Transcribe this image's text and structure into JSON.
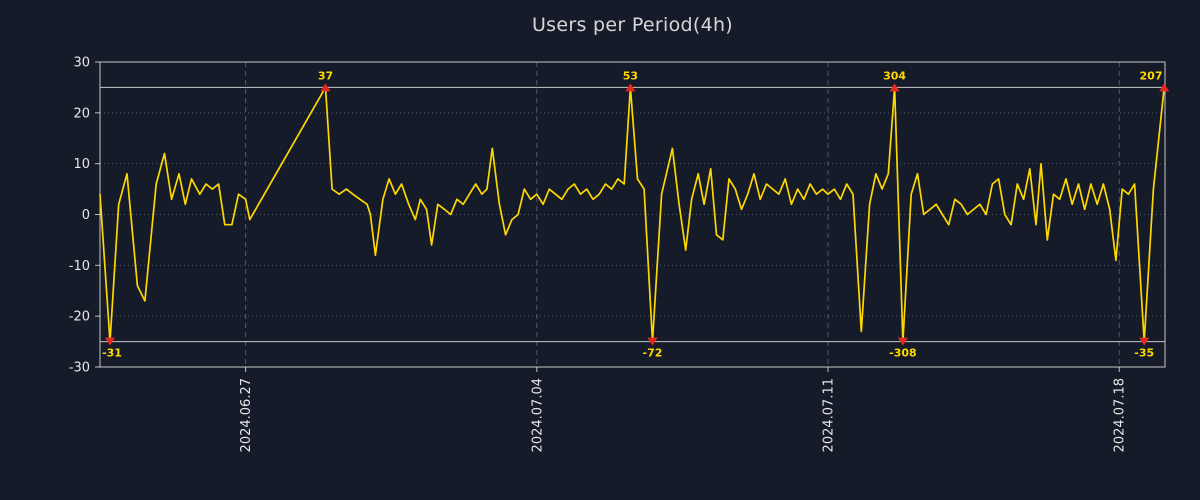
{
  "chart_data": {
    "type": "line",
    "title": "Users per Period(4h)",
    "xlabel": "",
    "ylabel": "",
    "ylim": [
      -30,
      30
    ],
    "yticks": [
      30,
      20,
      10,
      0,
      -10,
      -20,
      -30
    ],
    "clip_value": 25,
    "x_domain": [
      0,
      25.6
    ],
    "xticks": [
      {
        "t": 3.5,
        "label": "2024.06.27"
      },
      {
        "t": 10.5,
        "label": "2024.07.04"
      },
      {
        "t": 17.5,
        "label": "2024.07.11"
      },
      {
        "t": 24.5,
        "label": "2024.07.18"
      }
    ],
    "clipped_point_labels": [
      "-31",
      "37",
      "53",
      "-72",
      "304",
      "-308",
      "-35",
      "207"
    ],
    "colors": {
      "background": "#151b28",
      "line": "#ffd700",
      "clip_marker": "#e8281e",
      "clip_label": "#ffd700",
      "grid": "#9aa3b0",
      "border": "#c8c8c8",
      "clip_line": "#dcdcdc",
      "tick_text": "#e8e8e8",
      "title_text": "#d6d6d6"
    },
    "series": [
      {
        "name": "users",
        "color": "#ffd700",
        "points": [
          [
            0.0,
            4
          ],
          [
            0.24,
            -31
          ],
          [
            0.45,
            2
          ],
          [
            0.65,
            8
          ],
          [
            0.9,
            -14
          ],
          [
            1.08,
            -17
          ],
          [
            1.35,
            6
          ],
          [
            1.55,
            12
          ],
          [
            1.72,
            3
          ],
          [
            1.9,
            8
          ],
          [
            2.05,
            2
          ],
          [
            2.2,
            7
          ],
          [
            2.4,
            4
          ],
          [
            2.55,
            6
          ],
          [
            2.7,
            5
          ],
          [
            2.85,
            6
          ],
          [
            3.0,
            -2
          ],
          [
            3.17,
            -2
          ],
          [
            3.33,
            4
          ],
          [
            3.5,
            3
          ],
          [
            3.6,
            -1
          ],
          [
            5.42,
            37
          ],
          [
            5.58,
            5
          ],
          [
            5.75,
            4
          ],
          [
            5.92,
            5
          ],
          [
            6.08,
            4
          ],
          [
            6.25,
            3
          ],
          [
            6.42,
            2
          ],
          [
            6.5,
            0
          ],
          [
            6.62,
            -8
          ],
          [
            6.8,
            3
          ],
          [
            6.95,
            7
          ],
          [
            7.1,
            4
          ],
          [
            7.25,
            6
          ],
          [
            7.42,
            2
          ],
          [
            7.58,
            -1
          ],
          [
            7.7,
            3
          ],
          [
            7.85,
            1
          ],
          [
            7.97,
            -6
          ],
          [
            8.12,
            2
          ],
          [
            8.28,
            1
          ],
          [
            8.43,
            0
          ],
          [
            8.58,
            3
          ],
          [
            8.73,
            2
          ],
          [
            8.88,
            4
          ],
          [
            9.03,
            6
          ],
          [
            9.18,
            4
          ],
          [
            9.3,
            5
          ],
          [
            9.43,
            13
          ],
          [
            9.6,
            2
          ],
          [
            9.75,
            -4
          ],
          [
            9.9,
            -1
          ],
          [
            10.05,
            0
          ],
          [
            10.2,
            5
          ],
          [
            10.35,
            3
          ],
          [
            10.5,
            4
          ],
          [
            10.65,
            2
          ],
          [
            10.8,
            5
          ],
          [
            10.95,
            4
          ],
          [
            11.1,
            3
          ],
          [
            11.25,
            5
          ],
          [
            11.4,
            6
          ],
          [
            11.55,
            4
          ],
          [
            11.7,
            5
          ],
          [
            11.85,
            3
          ],
          [
            12.0,
            4
          ],
          [
            12.15,
            6
          ],
          [
            12.3,
            5
          ],
          [
            12.45,
            7
          ],
          [
            12.6,
            6
          ],
          [
            12.75,
            53
          ],
          [
            12.92,
            7
          ],
          [
            13.08,
            5
          ],
          [
            13.28,
            -72
          ],
          [
            13.5,
            4
          ],
          [
            13.76,
            13
          ],
          [
            13.92,
            2
          ],
          [
            14.08,
            -7
          ],
          [
            14.22,
            3
          ],
          [
            14.38,
            8
          ],
          [
            14.52,
            2
          ],
          [
            14.68,
            9
          ],
          [
            14.82,
            -4
          ],
          [
            14.97,
            -5
          ],
          [
            15.12,
            7
          ],
          [
            15.27,
            5
          ],
          [
            15.42,
            1
          ],
          [
            15.57,
            4
          ],
          [
            15.72,
            8
          ],
          [
            15.87,
            3
          ],
          [
            16.02,
            6
          ],
          [
            16.17,
            5
          ],
          [
            16.32,
            4
          ],
          [
            16.47,
            7
          ],
          [
            16.62,
            2
          ],
          [
            16.77,
            5
          ],
          [
            16.92,
            3
          ],
          [
            17.07,
            6
          ],
          [
            17.22,
            4
          ],
          [
            17.37,
            5
          ],
          [
            17.5,
            4
          ],
          [
            17.65,
            5
          ],
          [
            17.8,
            3
          ],
          [
            17.95,
            6
          ],
          [
            18.1,
            4
          ],
          [
            18.3,
            -23
          ],
          [
            18.5,
            2
          ],
          [
            18.65,
            8
          ],
          [
            18.8,
            5
          ],
          [
            18.95,
            8
          ],
          [
            19.1,
            304
          ],
          [
            19.3,
            -308
          ],
          [
            19.5,
            4
          ],
          [
            19.65,
            8
          ],
          [
            19.8,
            0
          ],
          [
            19.95,
            1
          ],
          [
            20.1,
            2
          ],
          [
            20.25,
            0
          ],
          [
            20.4,
            -2
          ],
          [
            20.55,
            3
          ],
          [
            20.7,
            2
          ],
          [
            20.85,
            0
          ],
          [
            21.0,
            1
          ],
          [
            21.15,
            2
          ],
          [
            21.3,
            0
          ],
          [
            21.45,
            6
          ],
          [
            21.6,
            7
          ],
          [
            21.75,
            0
          ],
          [
            21.9,
            -2
          ],
          [
            22.05,
            6
          ],
          [
            22.2,
            3
          ],
          [
            22.35,
            9
          ],
          [
            22.5,
            -2
          ],
          [
            22.62,
            10
          ],
          [
            22.77,
            -5
          ],
          [
            22.92,
            4
          ],
          [
            23.07,
            3
          ],
          [
            23.22,
            7
          ],
          [
            23.37,
            2
          ],
          [
            23.52,
            6
          ],
          [
            23.67,
            1
          ],
          [
            23.82,
            6
          ],
          [
            23.97,
            2
          ],
          [
            24.12,
            6
          ],
          [
            24.27,
            1
          ],
          [
            24.42,
            -9
          ],
          [
            24.57,
            5
          ],
          [
            24.72,
            4
          ],
          [
            24.87,
            6
          ],
          [
            25.1,
            -35
          ],
          [
            25.32,
            5
          ],
          [
            25.58,
            207
          ]
        ]
      }
    ]
  }
}
